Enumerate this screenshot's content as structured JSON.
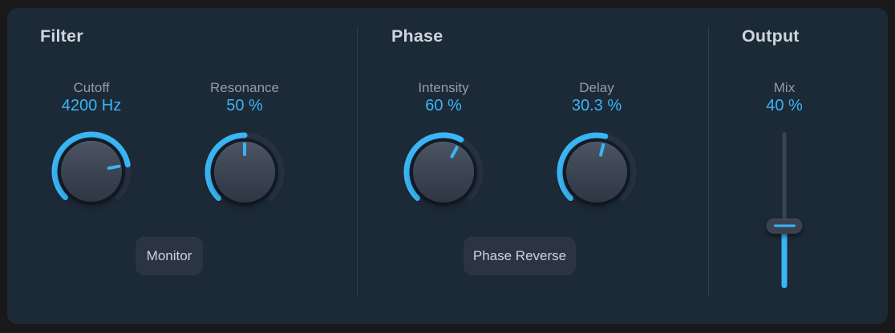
{
  "colors": {
    "accent": "#3ab5f5",
    "panel_bg": "#1c2937",
    "outer_bg": "#191919"
  },
  "filter": {
    "title": "Filter",
    "cutoff": {
      "label": "Cutoff",
      "value": "4200 Hz",
      "fraction": 0.795
    },
    "resonance": {
      "label": "Resonance",
      "value": "50 %",
      "fraction": 0.5
    },
    "monitor_button": "Monitor"
  },
  "phase": {
    "title": "Phase",
    "intensity": {
      "label": "Intensity",
      "value": "60 %",
      "fraction": 0.605
    },
    "delay": {
      "label": "Delay",
      "value": "30.3 %",
      "fraction": 0.55
    },
    "phase_reverse_button": "Phase Reverse"
  },
  "output": {
    "title": "Output",
    "mix": {
      "label": "Mix",
      "value": "40 %",
      "fraction": 0.4
    }
  }
}
